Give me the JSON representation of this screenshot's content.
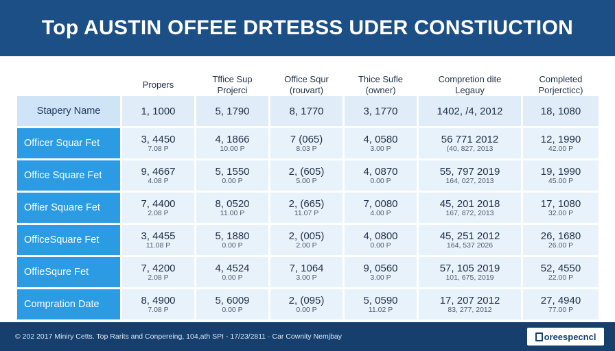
{
  "title": "Top AUSTIN OFFEE DRTEBSS UDER CONSTIUCTION",
  "header": {
    "columns": [
      {
        "line1": "Propers",
        "line2": ""
      },
      {
        "line1": "Tffice Sup",
        "line2": "Projerci"
      },
      {
        "line1": "Office Squr",
        "line2": "(rouvart)"
      },
      {
        "line1": "Thice Sufle",
        "line2": "(owner)"
      },
      {
        "line1": "Compretion dite",
        "line2": "Legauy"
      },
      {
        "line1": "Completed",
        "line2": "Porjercticc)"
      }
    ]
  },
  "rows": [
    {
      "label": "Stapery Name",
      "cells": [
        {
          "main": "1, 1000",
          "sub": ""
        },
        {
          "main": "5, 1790",
          "sub": ""
        },
        {
          "main": "8, 1770",
          "sub": ""
        },
        {
          "main": "3, 1770",
          "sub": ""
        },
        {
          "main": "1402, /4, 2012",
          "sub": ""
        },
        {
          "main": "18, 1080",
          "sub": ""
        }
      ]
    },
    {
      "label": "Officer Squar Fet",
      "cells": [
        {
          "main": "3, 4450",
          "sub": "7.08 P"
        },
        {
          "main": "4, 1866",
          "sub": "10.00 P"
        },
        {
          "main": "7 (065)",
          "sub": "8.03 P"
        },
        {
          "main": "4, 0580",
          "sub": "3.00 P"
        },
        {
          "main": "56 771 2012",
          "sub": "(40, 827, 2013"
        },
        {
          "main": "12, 1990",
          "sub": "42.00 P"
        }
      ]
    },
    {
      "label": "Office Square Fet",
      "cells": [
        {
          "main": "9, 4667",
          "sub": "4.08 P"
        },
        {
          "main": "5, 1550",
          "sub": "0.00 P"
        },
        {
          "main": "2, (605)",
          "sub": "5.00 P"
        },
        {
          "main": "4, 0870",
          "sub": "0.00 P"
        },
        {
          "main": "55, 797 2019",
          "sub": "164, 027, 2013"
        },
        {
          "main": "19, 1990",
          "sub": "45.00 P"
        }
      ]
    },
    {
      "label": "Offier Square Fet",
      "cells": [
        {
          "main": "7, 4400",
          "sub": "2.08 P"
        },
        {
          "main": "8, 0520",
          "sub": "11.00 P"
        },
        {
          "main": "2, (665)",
          "sub": "11.07 P"
        },
        {
          "main": "7, 0080",
          "sub": "4.00 P"
        },
        {
          "main": "45, 201 2018",
          "sub": "167, 872, 2013"
        },
        {
          "main": "17, 1080",
          "sub": "32.00 P"
        }
      ]
    },
    {
      "label": "OfficeSquare Fet",
      "cells": [
        {
          "main": "3, 4455",
          "sub": "11.08 P"
        },
        {
          "main": "5, 1880",
          "sub": "0.00 P"
        },
        {
          "main": "2, (005)",
          "sub": "2.00 P"
        },
        {
          "main": "4, 0800",
          "sub": "0.00 P"
        },
        {
          "main": "45, 251 2012",
          "sub": "164, 537 2026"
        },
        {
          "main": "26, 1680",
          "sub": "26.00 P"
        }
      ]
    },
    {
      "label": "OffieSqure Fet",
      "cells": [
        {
          "main": "7, 4200",
          "sub": "2.08 P"
        },
        {
          "main": "4, 4524",
          "sub": "0.00 P"
        },
        {
          "main": "7, 1064",
          "sub": "3.00 P"
        },
        {
          "main": "9, 0560",
          "sub": "3.00 P"
        },
        {
          "main": "57, 105 2019",
          "sub": "101, 675, 2019"
        },
        {
          "main": "52, 4550",
          "sub": "22.00 P"
        }
      ]
    },
    {
      "label": "Compration Date",
      "cells": [
        {
          "main": "8, 4900",
          "sub": "7.08 P"
        },
        {
          "main": "5, 6009",
          "sub": "0.00 P"
        },
        {
          "main": "2, (095)",
          "sub": "0.00 P"
        },
        {
          "main": "5, 0590",
          "sub": "11.02 P"
        },
        {
          "main": "17, 207 2012",
          "sub": "83, 277, 2012"
        },
        {
          "main": "27, 4940",
          "sub": "77.00 P"
        }
      ]
    }
  ],
  "footer": {
    "text": "© 202 2017 Miniry Cetts. Top Rarits and Conpereing, 104,ath SPI - 17/23/2811 · Car Cownity Nemjbay",
    "brand": "oreespecncl"
  },
  "colors": {
    "title_bg": "#1b4f86",
    "label_bg": "#2b9be3",
    "cell_bg": "#e8f2fb",
    "footer_bg": "#163f6e"
  }
}
